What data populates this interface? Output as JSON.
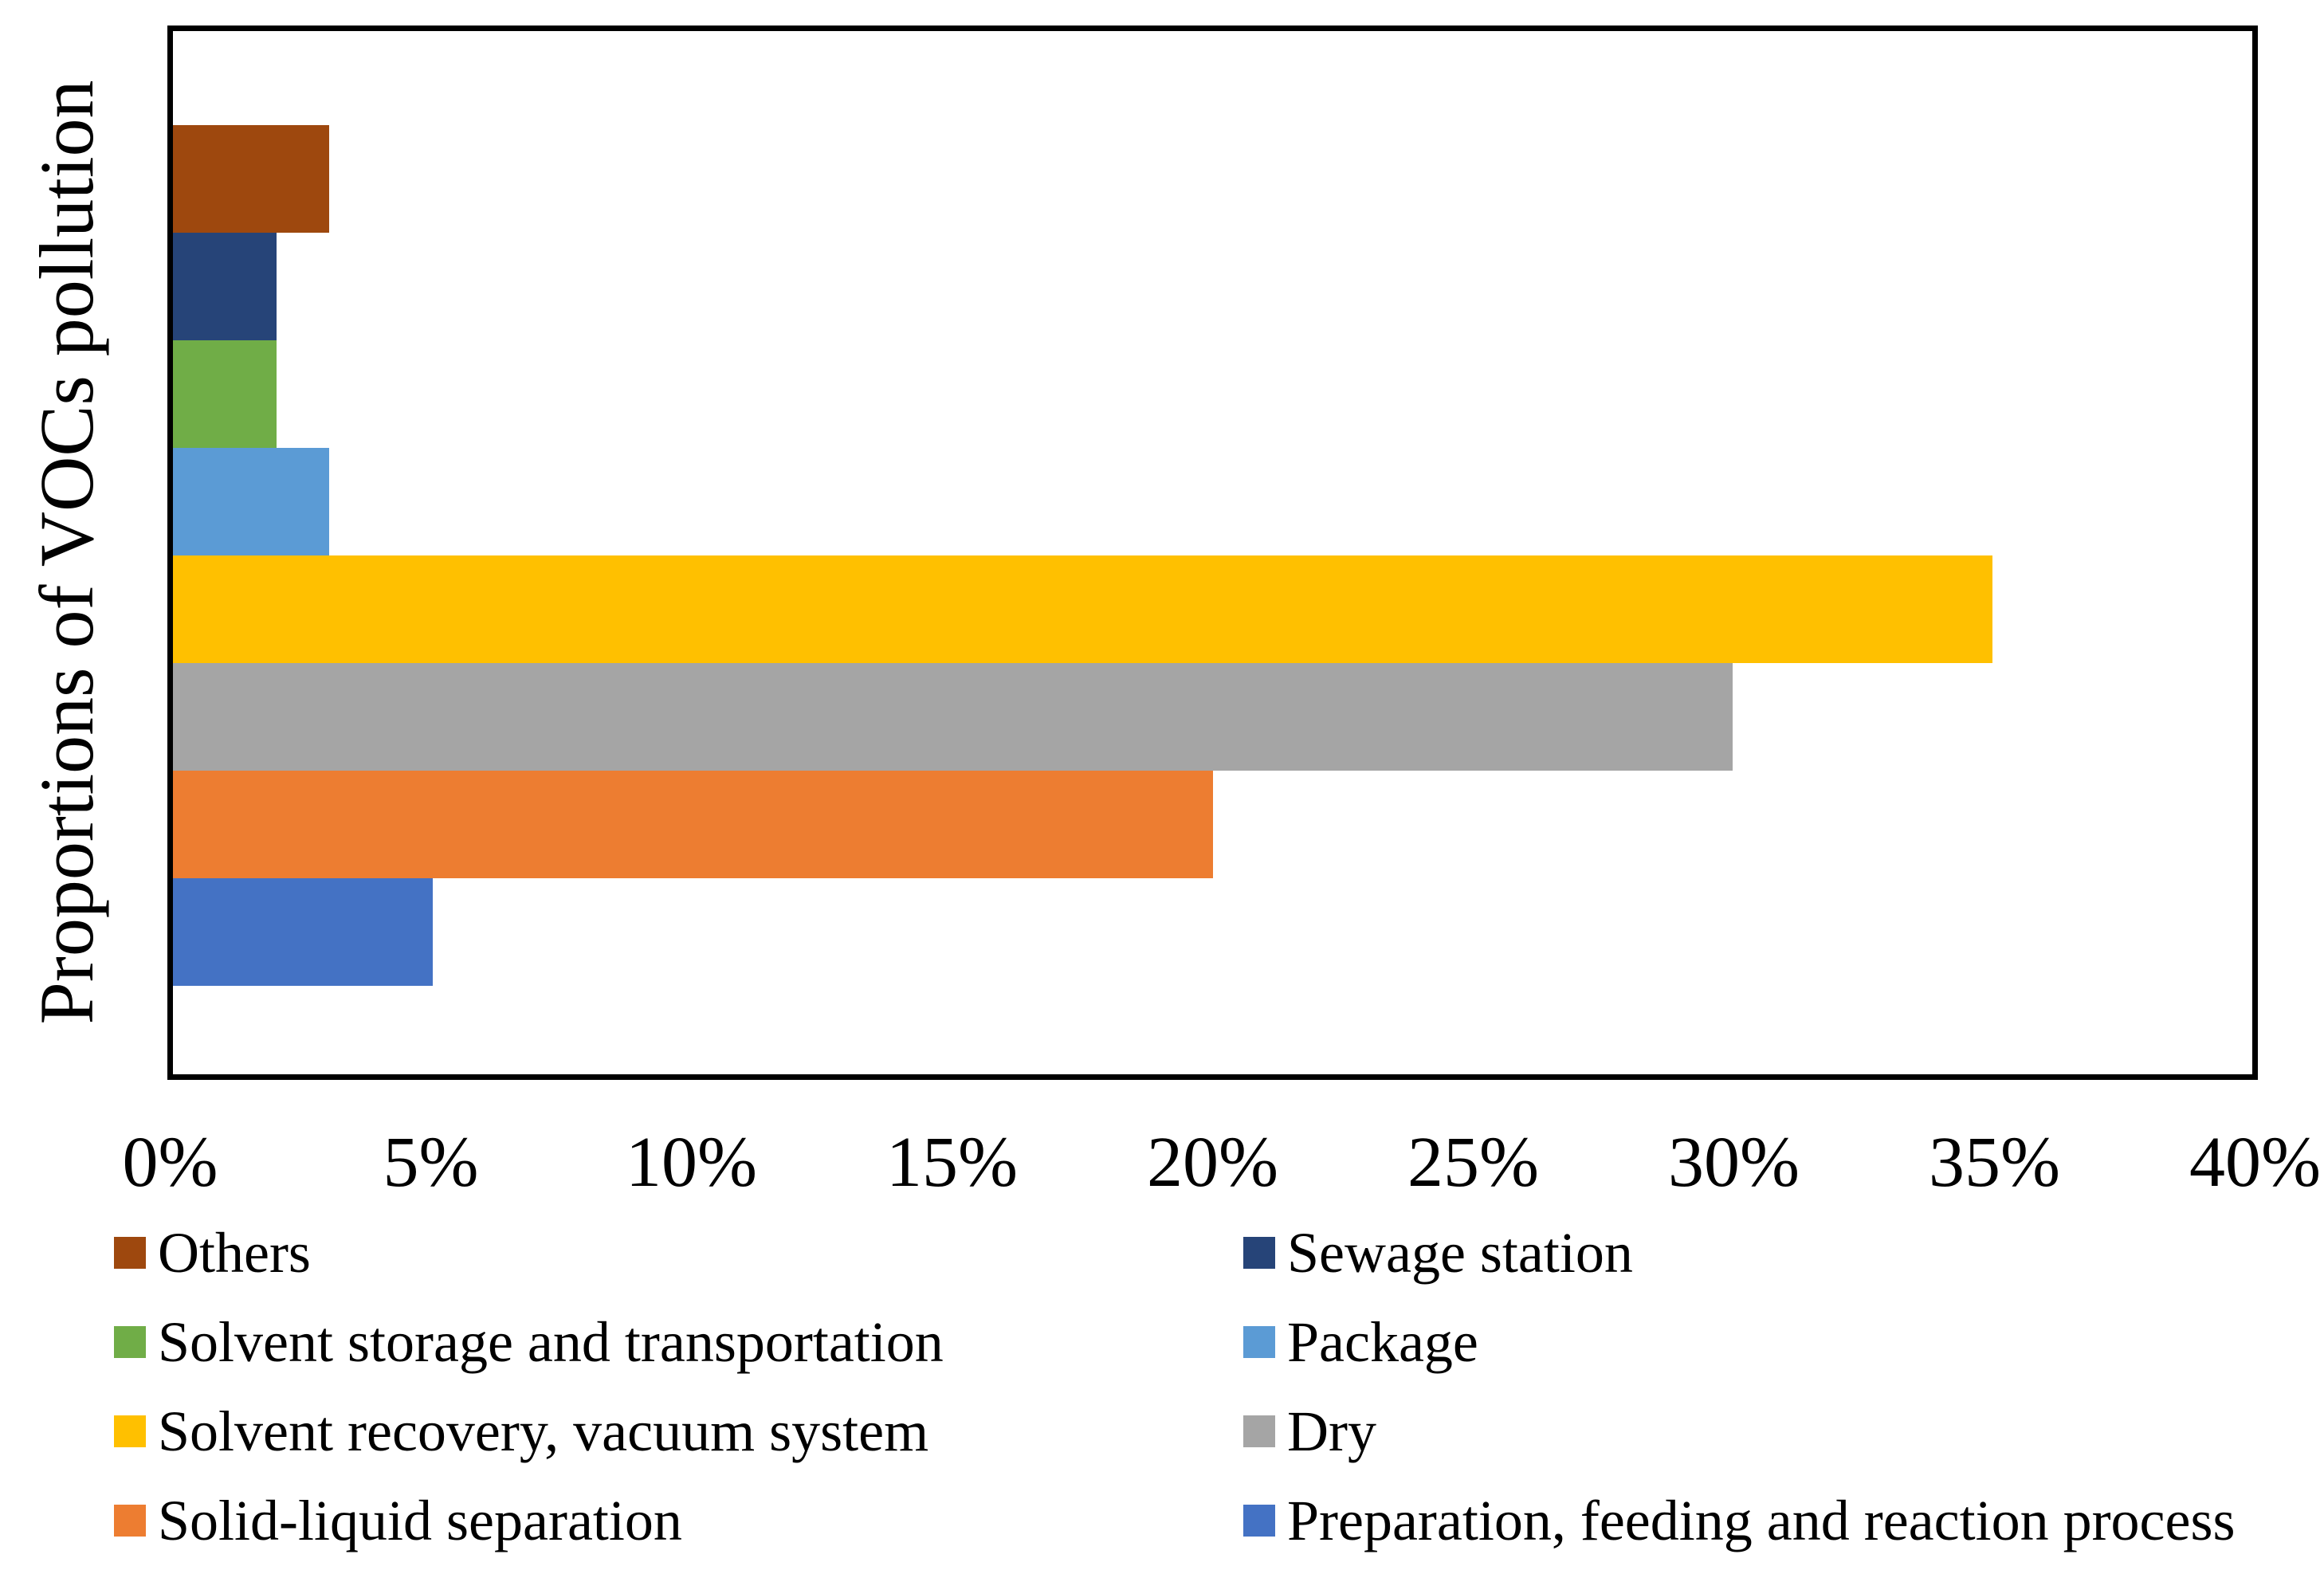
{
  "chart_data": {
    "type": "bar",
    "orientation": "horizontal",
    "y_axis_title": "Proportions of VOCs pollution",
    "values_unit": "%",
    "x_axis": {
      "min": 0,
      "max": 40,
      "tick_step": 5,
      "tick_labels": [
        "0%",
        "5%",
        "10%",
        "15%",
        "20%",
        "25%",
        "30%",
        "35%",
        "40%"
      ]
    },
    "grid": "off",
    "plot_border_color": "#000000",
    "background_color": "#FFFFFF",
    "series": [
      {
        "name": "Others",
        "value": 3,
        "color": "#9E480E"
      },
      {
        "name": "Sewage station",
        "value": 2,
        "color": "#264478"
      },
      {
        "name": "Solvent storage and transportation",
        "value": 2,
        "color": "#70AD47"
      },
      {
        "name": "Package",
        "value": 3,
        "color": "#5B9BD5"
      },
      {
        "name": "Solvent recovery, vacuum system",
        "value": 35,
        "color": "#FFC000"
      },
      {
        "name": "Dry",
        "value": 30,
        "color": "#A5A5A5"
      },
      {
        "name": "Solid-liquid separation",
        "value": 20,
        "color": "#ED7D31"
      },
      {
        "name": "Preparation, feeding and reaction process",
        "value": 5,
        "color": "#4472C4"
      }
    ],
    "legend": {
      "position": "bottom",
      "columns": 2,
      "column_order": [
        [
          "Others",
          "Solvent storage and transportation",
          "Solvent recovery, vacuum system",
          "Solid-liquid separation"
        ],
        [
          "Sewage station",
          "Package",
          "Dry",
          "Preparation, feeding and reaction process"
        ]
      ]
    }
  }
}
